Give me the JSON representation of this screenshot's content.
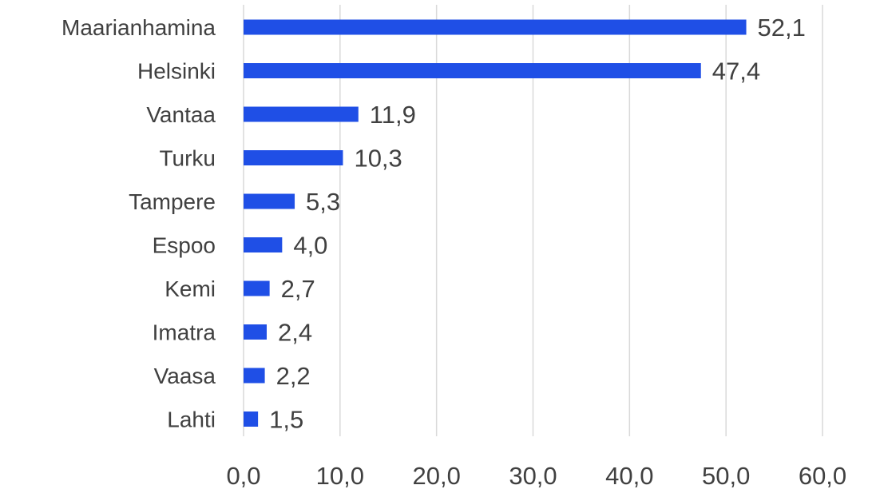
{
  "chart_data": {
    "type": "bar",
    "orientation": "horizontal",
    "categories": [
      "Maarianhamina",
      "Helsinki",
      "Vantaa",
      "Turku",
      "Tampere",
      "Espoo",
      "Kemi",
      "Imatra",
      "Vaasa",
      "Lahti"
    ],
    "values": [
      52.1,
      47.4,
      11.9,
      10.3,
      5.3,
      4.0,
      2.7,
      2.4,
      2.2,
      1.5
    ],
    "value_labels": [
      "52,1",
      "47,4",
      "11,9",
      "10,3",
      "5,3",
      "4,0",
      "2,7",
      "2,4",
      "2,2",
      "1,5"
    ],
    "xlim": [
      0,
      60
    ],
    "x_ticks": [
      0,
      10,
      20,
      30,
      40,
      50,
      60
    ],
    "x_tick_labels": [
      "0,0",
      "10,0",
      "20,0",
      "30,0",
      "40,0",
      "50,0",
      "60,0"
    ],
    "grid": "vertical",
    "bar_color": "#1f4fe6",
    "grid_color": "#d9d9d9",
    "text_color": "#404040"
  }
}
